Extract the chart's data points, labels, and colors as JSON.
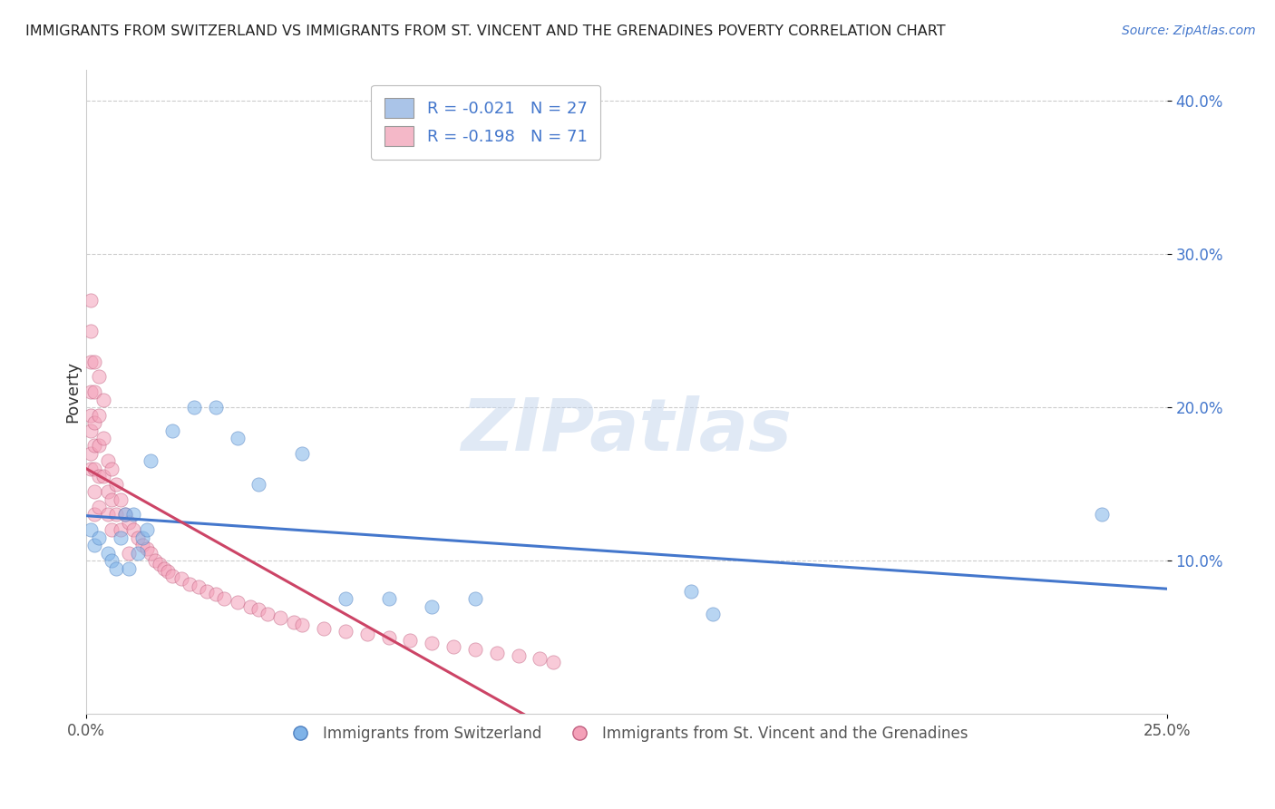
{
  "title": "IMMIGRANTS FROM SWITZERLAND VS IMMIGRANTS FROM ST. VINCENT AND THE GRENADINES POVERTY CORRELATION CHART",
  "source": "Source: ZipAtlas.com",
  "ylabel": "Poverty",
  "watermark": "ZIPatlas",
  "xlim": [
    0.0,
    0.25
  ],
  "ylim": [
    0.0,
    0.42
  ],
  "legend_entry1": "R = -0.021   N = 27",
  "legend_entry2": "R = -0.198   N = 71",
  "legend_color1": "#aac4e8",
  "legend_color2": "#f4b8c8",
  "dot_color_swiss": "#7fb3e8",
  "dot_color_vincent": "#f4a0b8",
  "dot_edge_swiss": "#5080c0",
  "dot_edge_vincent": "#c06080",
  "line_color_swiss": "#4477cc",
  "line_color_vincent": "#cc4466",
  "dot_size": 120,
  "dot_alpha": 0.55,
  "switzerland_x": [
    0.001,
    0.002,
    0.003,
    0.005,
    0.006,
    0.007,
    0.008,
    0.009,
    0.01,
    0.011,
    0.012,
    0.013,
    0.014,
    0.015,
    0.02,
    0.025,
    0.03,
    0.035,
    0.04,
    0.05,
    0.06,
    0.07,
    0.08,
    0.09,
    0.14,
    0.145,
    0.235
  ],
  "switzerland_y": [
    0.12,
    0.11,
    0.115,
    0.105,
    0.1,
    0.095,
    0.115,
    0.13,
    0.095,
    0.13,
    0.105,
    0.115,
    0.12,
    0.165,
    0.185,
    0.2,
    0.2,
    0.18,
    0.15,
    0.17,
    0.075,
    0.075,
    0.07,
    0.075,
    0.08,
    0.065,
    0.13
  ],
  "vincent_x": [
    0.001,
    0.001,
    0.001,
    0.001,
    0.001,
    0.001,
    0.001,
    0.001,
    0.002,
    0.002,
    0.002,
    0.002,
    0.002,
    0.002,
    0.002,
    0.003,
    0.003,
    0.003,
    0.003,
    0.003,
    0.004,
    0.004,
    0.004,
    0.005,
    0.005,
    0.005,
    0.006,
    0.006,
    0.006,
    0.007,
    0.007,
    0.008,
    0.008,
    0.009,
    0.01,
    0.01,
    0.011,
    0.012,
    0.013,
    0.014,
    0.015,
    0.016,
    0.017,
    0.018,
    0.019,
    0.02,
    0.022,
    0.024,
    0.026,
    0.028,
    0.03,
    0.032,
    0.035,
    0.038,
    0.04,
    0.042,
    0.045,
    0.048,
    0.05,
    0.055,
    0.06,
    0.065,
    0.07,
    0.075,
    0.08,
    0.085,
    0.09,
    0.095,
    0.1,
    0.105,
    0.108
  ],
  "vincent_y": [
    0.27,
    0.25,
    0.23,
    0.21,
    0.195,
    0.185,
    0.17,
    0.16,
    0.23,
    0.21,
    0.19,
    0.175,
    0.16,
    0.145,
    0.13,
    0.22,
    0.195,
    0.175,
    0.155,
    0.135,
    0.205,
    0.18,
    0.155,
    0.165,
    0.145,
    0.13,
    0.16,
    0.14,
    0.12,
    0.15,
    0.13,
    0.14,
    0.12,
    0.13,
    0.125,
    0.105,
    0.12,
    0.115,
    0.11,
    0.108,
    0.105,
    0.1,
    0.098,
    0.095,
    0.093,
    0.09,
    0.088,
    0.085,
    0.083,
    0.08,
    0.078,
    0.075,
    0.073,
    0.07,
    0.068,
    0.065,
    0.063,
    0.06,
    0.058,
    0.056,
    0.054,
    0.052,
    0.05,
    0.048,
    0.046,
    0.044,
    0.042,
    0.04,
    0.038,
    0.036,
    0.034
  ]
}
